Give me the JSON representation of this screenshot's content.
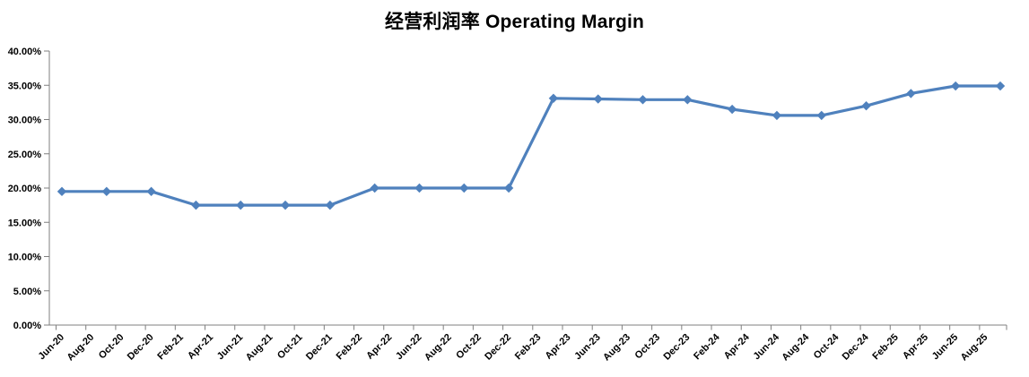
{
  "chart_data": {
    "type": "line",
    "title": "经营利润率 Operating Margin",
    "legend": "none",
    "grid": false,
    "x_axis": {
      "tick_labels": [
        "Jun-20",
        "Aug-20",
        "Oct-20",
        "Dec-20",
        "Feb-21",
        "Apr-21",
        "Jun-21",
        "Aug-21",
        "Oct-21",
        "Dec-21",
        "Feb-22",
        "Apr-22",
        "Jun-22",
        "Aug-22",
        "Oct-22",
        "Dec-22",
        "Feb-23",
        "Apr-23",
        "Jun-23",
        "Aug-23",
        "Oct-23",
        "Dec-23",
        "Feb-24",
        "Apr-24",
        "Jun-24",
        "Aug-24",
        "Oct-24",
        "Dec-24",
        "Feb-25",
        "Apr-25",
        "Jun-25",
        "Aug-25"
      ],
      "label_rotation_deg": -45,
      "months_between_ticks": 2
    },
    "y_axis": {
      "min": 0,
      "max": 40,
      "step": 5,
      "format": "percent",
      "tick_labels": [
        "0.00%",
        "5.00%",
        "10.00%",
        "15.00%",
        "20.00%",
        "25.00%",
        "30.00%",
        "35.00%",
        "40.00%"
      ]
    },
    "series": [
      {
        "name": "Operating Margin",
        "color": "#4F81BD",
        "marker": "diamond",
        "months_between_points": 3,
        "points": [
          {
            "period": "Jun-20",
            "value": 19.5
          },
          {
            "period": "Sep-20",
            "value": 19.5
          },
          {
            "period": "Dec-20",
            "value": 19.5
          },
          {
            "period": "Mar-21",
            "value": 17.5
          },
          {
            "period": "Jun-21",
            "value": 17.5
          },
          {
            "period": "Sep-21",
            "value": 17.5
          },
          {
            "period": "Dec-21",
            "value": 17.5
          },
          {
            "period": "Mar-22",
            "value": 20.0
          },
          {
            "period": "Jun-22",
            "value": 20.0
          },
          {
            "period": "Sep-22",
            "value": 20.0
          },
          {
            "period": "Dec-22",
            "value": 20.0
          },
          {
            "period": "Mar-23",
            "value": 33.1
          },
          {
            "period": "Jun-23",
            "value": 33.0
          },
          {
            "period": "Sep-23",
            "value": 32.9
          },
          {
            "period": "Dec-23",
            "value": 32.9
          },
          {
            "period": "Mar-24",
            "value": 31.5
          },
          {
            "period": "Jun-24",
            "value": 30.6
          },
          {
            "period": "Sep-24",
            "value": 30.6
          },
          {
            "period": "Dec-24",
            "value": 32.0
          },
          {
            "period": "Mar-25",
            "value": 33.8
          },
          {
            "period": "Jun-25",
            "value": 34.9
          },
          {
            "period": "Sep-25",
            "value": 34.9
          }
        ]
      }
    ],
    "colors": {
      "series_line": "#4F81BD",
      "axis_line": "#7F7F7F",
      "text": "#000000",
      "background": "#FFFFFF"
    }
  }
}
